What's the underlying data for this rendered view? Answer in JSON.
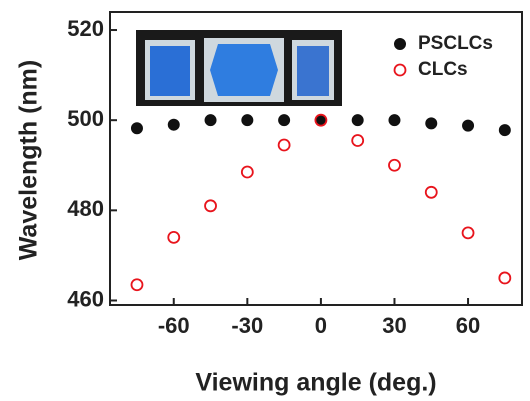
{
  "chart_data": {
    "type": "scatter",
    "x_label": "Viewing angle (deg.)",
    "y_label": "Wavelength (nm)",
    "x": [
      -75,
      -60,
      -45,
      -30,
      -15,
      0,
      15,
      30,
      45,
      60,
      75
    ],
    "series": [
      {
        "name": "PSCLCs",
        "color": "#111111",
        "filled": true,
        "values": [
          498.2,
          499,
          500,
          500,
          500,
          500,
          500,
          500,
          499.3,
          498.8,
          497.8
        ]
      },
      {
        "name": "CLCs",
        "color": "#e8141c",
        "filled": false,
        "values": [
          463.5,
          474,
          481,
          488.5,
          494.5,
          500,
          495.5,
          490,
          484,
          475,
          465
        ]
      }
    ],
    "xlim": [
      -86,
      82
    ],
    "ylim": [
      459,
      524
    ],
    "xticks": [
      -60,
      -30,
      0,
      30,
      60
    ],
    "yticks": [
      460,
      480,
      500,
      520
    ],
    "legend": "upper right"
  }
}
